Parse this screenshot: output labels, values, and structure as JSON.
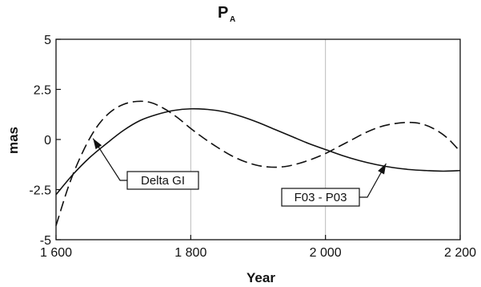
{
  "chart_data": {
    "type": "line",
    "title": "P",
    "title_subscript": "A",
    "xlabel": "Year",
    "ylabel": "mas",
    "xlim": [
      1600,
      2200
    ],
    "ylim": [
      -5,
      5
    ],
    "xticks": [
      {
        "value": 1600,
        "label": "1 600"
      },
      {
        "value": 1800,
        "label": "1 800"
      },
      {
        "value": 2000,
        "label": "2 000"
      },
      {
        "value": 2200,
        "label": "2 200"
      }
    ],
    "yticks": [
      {
        "value": 5,
        "label": "5"
      },
      {
        "value": 2.5,
        "label": "2.5"
      },
      {
        "value": 0,
        "label": "0"
      },
      {
        "value": -2.5,
        "label": "-2.5"
      },
      {
        "value": -5,
        "label": "-5"
      }
    ],
    "grid": {
      "vertical": true,
      "horizontal": false
    },
    "series": [
      {
        "name": "F03 - P03",
        "style": "solid",
        "color": "#111111",
        "x": [
          1600,
          1625,
          1650,
          1675,
          1700,
          1725,
          1750,
          1775,
          1800,
          1825,
          1850,
          1875,
          1900,
          1925,
          1950,
          1975,
          2000,
          2025,
          2050,
          2075,
          2100,
          2125,
          2150,
          2175,
          2200
        ],
        "y": [
          -2.75,
          -1.75,
          -0.9,
          -0.2,
          0.45,
          0.95,
          1.25,
          1.45,
          1.53,
          1.5,
          1.38,
          1.15,
          0.85,
          0.5,
          0.15,
          -0.2,
          -0.5,
          -0.8,
          -1.05,
          -1.25,
          -1.4,
          -1.5,
          -1.55,
          -1.58,
          -1.55
        ]
      },
      {
        "name": "Delta GI",
        "style": "dashed",
        "color": "#111111",
        "x": [
          1600,
          1620,
          1640,
          1660,
          1680,
          1700,
          1720,
          1740,
          1760,
          1780,
          1800,
          1820,
          1840,
          1860,
          1880,
          1900,
          1920,
          1940,
          1960,
          1980,
          2000,
          2020,
          2040,
          2060,
          2080,
          2100,
          2120,
          2140,
          2160,
          2180,
          2200
        ],
        "y": [
          -4.3,
          -2.2,
          -0.6,
          0.6,
          1.35,
          1.75,
          1.9,
          1.85,
          1.55,
          1.1,
          0.55,
          0.05,
          -0.4,
          -0.8,
          -1.1,
          -1.3,
          -1.38,
          -1.35,
          -1.2,
          -0.98,
          -0.7,
          -0.35,
          0.0,
          0.35,
          0.62,
          0.78,
          0.85,
          0.8,
          0.55,
          0.1,
          -0.6
        ]
      }
    ],
    "annotations": [
      {
        "text": "Delta GI",
        "target": {
          "x": 1655,
          "y": 0.05
        }
      },
      {
        "text": "F03 - P03",
        "target": {
          "x": 2090,
          "y": -1.2
        }
      }
    ]
  }
}
